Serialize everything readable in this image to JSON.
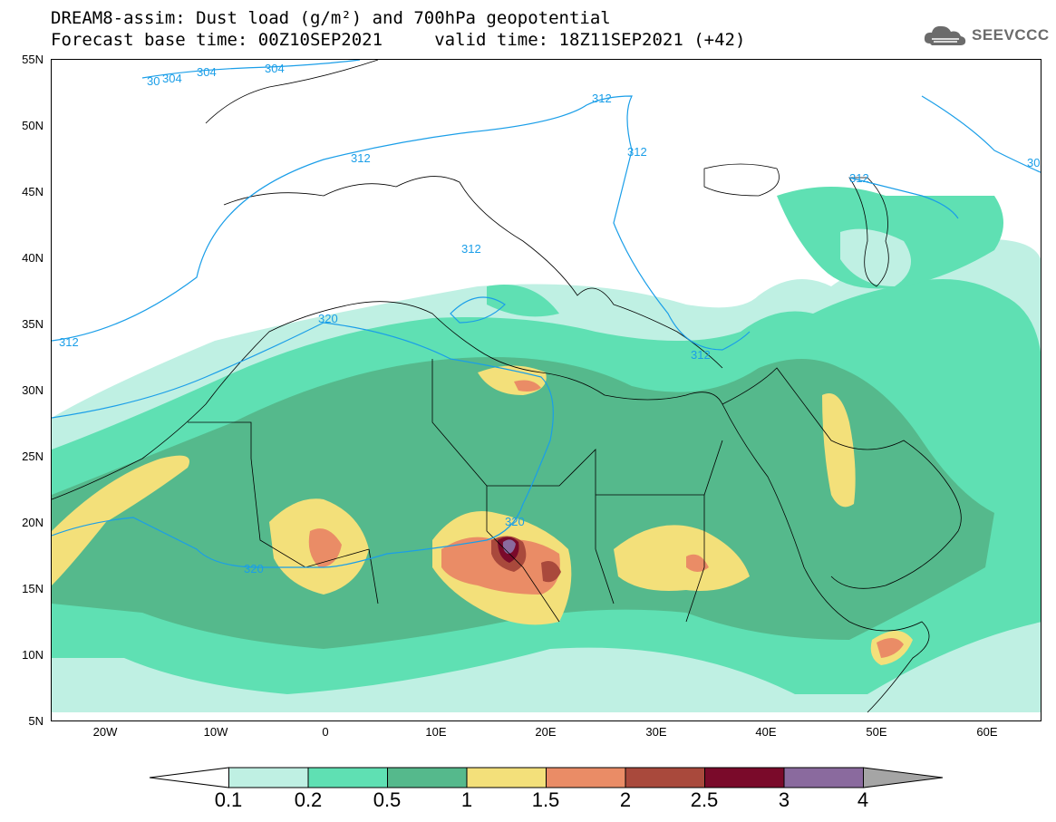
{
  "header": {
    "title_line1": "DREAM8-assim: Dust load (g/m²) and 700hPa geopotential",
    "title_line2": "Forecast base time: 00Z10SEP2021     valid time: 18Z11SEP2021 (+42)"
  },
  "logo": {
    "text": "SEEVCCC",
    "icon": "cloud-logo-icon"
  },
  "map": {
    "lat_labels": [
      "55N",
      "50N",
      "45N",
      "40N",
      "35N",
      "30N",
      "25N",
      "20N",
      "15N",
      "10N",
      "5N"
    ],
    "lon_labels": [
      "20W",
      "10W",
      "0",
      "10E",
      "20E",
      "30E",
      "40E",
      "50E",
      "60E"
    ],
    "contour_labels": [
      "30",
      "304",
      "304",
      "304",
      "312",
      "312",
      "312",
      "312",
      "312",
      "312",
      "312",
      "30",
      "320",
      "320",
      "320"
    ],
    "contour_color": "#1a9ee8"
  },
  "colorbar": {
    "labels": [
      "0.1",
      "0.2",
      "0.5",
      "1",
      "1.5",
      "2",
      "2.5",
      "3",
      "4"
    ],
    "colors": [
      "#ffffff",
      "#bff0e3",
      "#5fe0b3",
      "#55b98c",
      "#f3e07a",
      "#ea8c66",
      "#a9493c",
      "#7a0a2a",
      "#8a6a9e",
      "#a5a5a5"
    ]
  }
}
